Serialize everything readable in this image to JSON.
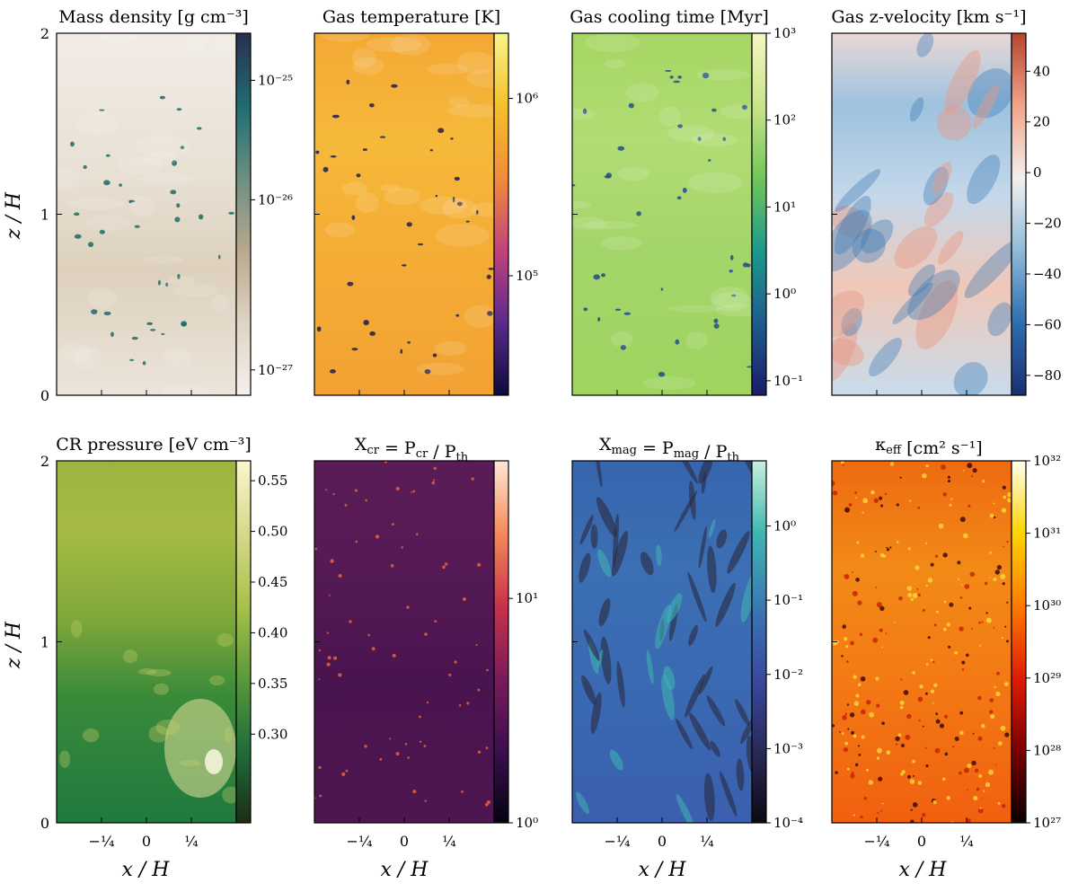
{
  "chart_data": {
    "type": "heatmap",
    "xlabel": "x / H",
    "ylabel": "z / H",
    "xlim": [
      -0.5,
      0.5
    ],
    "ylim": [
      0,
      2
    ],
    "xticks": [
      {
        "value": -0.25,
        "label": "−¼"
      },
      {
        "value": 0,
        "label": "0"
      },
      {
        "value": 0.25,
        "label": "¼"
      }
    ],
    "yticks": [
      {
        "value": 0,
        "label": "0"
      },
      {
        "value": 1,
        "label": "1"
      },
      {
        "value": 2,
        "label": "2"
      }
    ],
    "panels": [
      {
        "id": "density",
        "title": "Mass density [g cm⁻³]",
        "cmap": [
          "#f3f0ed",
          "#e0d4c2",
          "#b8a88e",
          "#6c8f80",
          "#1f6c72",
          "#2a2f52"
        ],
        "field_stops": [
          [
            0,
            "#ebe4da"
          ],
          [
            0.35,
            "#ddd1bd"
          ],
          [
            0.6,
            "#e8e0d3"
          ],
          [
            1,
            "#f1ece6"
          ]
        ],
        "blob_color": "#1c6a6a",
        "blobs": "sparse-dark",
        "scale": "log",
        "cbar_ticks": [
          {
            "label": "10⁻²⁵",
            "frac": 0.87
          },
          {
            "label": "10⁻²⁶",
            "frac": 0.54
          },
          {
            "label": "10⁻²⁷",
            "frac": 0.07
          }
        ]
      },
      {
        "id": "temperature",
        "title": "Gas temperature [K]",
        "cmap": [
          "#0b0c3a",
          "#5a2a8c",
          "#c2427a",
          "#f28c3c",
          "#f5c02a",
          "#f6f58a"
        ],
        "field_stops": [
          [
            0,
            "#f2a233"
          ],
          [
            0.4,
            "#f4ad35"
          ],
          [
            0.7,
            "#f6b93a"
          ],
          [
            1,
            "#f4a834"
          ]
        ],
        "blob_color": "#1e1d4e",
        "blobs": "sparse-dark",
        "scale": "log",
        "cbar_ticks": [
          {
            "label": "10⁶",
            "frac": 0.82
          },
          {
            "label": "10⁵",
            "frac": 0.33
          }
        ]
      },
      {
        "id": "cooling",
        "title": "Gas cooling time [Myr]",
        "cmap": [
          "#1c1b6a",
          "#1e5c8e",
          "#1d9a8c",
          "#71c658",
          "#c8e48a",
          "#f7f7c4"
        ],
        "field_stops": [
          [
            0,
            "#9fd460"
          ],
          [
            0.4,
            "#a4d56a"
          ],
          [
            0.7,
            "#b1dc74"
          ],
          [
            1,
            "#a7d663"
          ]
        ],
        "blob_color": "#1f4f8c",
        "blobs": "sparse-dark",
        "scale": "log",
        "cbar_ticks": [
          {
            "label": "10³",
            "frac": 1.0
          },
          {
            "label": "10²",
            "frac": 0.76
          },
          {
            "label": "10¹",
            "frac": 0.52
          },
          {
            "label": "10⁰",
            "frac": 0.28
          },
          {
            "label": "10⁻¹",
            "frac": 0.04
          }
        ]
      },
      {
        "id": "vz",
        "title": "Gas z-velocity [km s⁻¹]",
        "cmap": [
          "#1b2f6e",
          "#2e6db0",
          "#8fbbd9",
          "#f3f0ef",
          "#f0a48a",
          "#b7452e"
        ],
        "field_stops": [
          [
            0,
            "#c8dcec"
          ],
          [
            0.3,
            "#f0c8b8"
          ],
          [
            0.55,
            "#c4d8ea"
          ],
          [
            0.8,
            "#9ec2df"
          ],
          [
            1,
            "#e8d8d6"
          ]
        ],
        "blob_color": "#3b79b6",
        "blobs": "streaks",
        "scale": "linear",
        "cbar_ticks": [
          {
            "label": "40",
            "frac": 0.895
          },
          {
            "label": "20",
            "frac": 0.755
          },
          {
            "label": "0",
            "frac": 0.615
          },
          {
            "label": "−20",
            "frac": 0.475
          },
          {
            "label": "−40",
            "frac": 0.335
          },
          {
            "label": "−60",
            "frac": 0.195
          },
          {
            "label": "−80",
            "frac": 0.055
          }
        ]
      },
      {
        "id": "crpressure",
        "title": "CR pressure [eV cm⁻³]",
        "cmap": [
          "#1c2e14",
          "#1f6e3a",
          "#5a9a3a",
          "#a8c24a",
          "#d8d88a",
          "#fbf7cc"
        ],
        "field_stops": [
          [
            0,
            "#1f7a3f"
          ],
          [
            0.35,
            "#3a8a3a"
          ],
          [
            0.55,
            "#7aa63a"
          ],
          [
            0.8,
            "#a6bb42"
          ],
          [
            1,
            "#9cb540"
          ]
        ],
        "blob_color": "#e6e19a",
        "blobs": "glow",
        "scale": "linear",
        "cbar_ticks": [
          {
            "label": "0.55",
            "frac": 0.945
          },
          {
            "label": "0.50",
            "frac": 0.805
          },
          {
            "label": "0.45",
            "frac": 0.665
          },
          {
            "label": "0.40",
            "frac": 0.525
          },
          {
            "label": "0.35",
            "frac": 0.385
          },
          {
            "label": "0.30",
            "frac": 0.245
          }
        ]
      },
      {
        "id": "xcr",
        "title": "X_cr = P_cr / P_th",
        "cmap": [
          "#05030f",
          "#3b0f4f",
          "#7a1c5a",
          "#c8324a",
          "#f58a5a",
          "#fde8d8"
        ],
        "field_stops": [
          [
            0,
            "#4e1650"
          ],
          [
            0.4,
            "#4a1450"
          ],
          [
            0.7,
            "#551a55"
          ],
          [
            1,
            "#5a1c57"
          ]
        ],
        "blob_color": "#f0683c",
        "blobs": "speckles",
        "scale": "log",
        "cbar_ticks": [
          {
            "label": "10¹",
            "frac": 0.62
          },
          {
            "label": "10⁰",
            "frac": 0.0
          }
        ]
      },
      {
        "id": "xmag",
        "title": "X_mag = P_mag / P_th",
        "cmap": [
          "#0a0a14",
          "#2a2a58",
          "#3a4aa0",
          "#3b78b4",
          "#3fb6b0",
          "#c8f0de"
        ],
        "field_stops": [
          [
            0,
            "#3a5fae"
          ],
          [
            0.4,
            "#3a6ab2"
          ],
          [
            0.7,
            "#3c6fb4"
          ],
          [
            1,
            "#3665ad"
          ]
        ],
        "blob_color": "#2a2a40",
        "blobs": "filaments",
        "scale": "log",
        "cbar_ticks": [
          {
            "label": "10⁰",
            "frac": 0.82
          },
          {
            "label": "10⁻¹",
            "frac": 0.615
          },
          {
            "label": "10⁻²",
            "frac": 0.41
          },
          {
            "label": "10⁻³",
            "frac": 0.205
          },
          {
            "label": "10⁻⁴",
            "frac": 0.0
          }
        ]
      },
      {
        "id": "kappa",
        "title": "κ_eff [cm² s⁻¹]",
        "cmap": [
          "#0a0000",
          "#7a0000",
          "#e01c00",
          "#ff7a00",
          "#ffd400",
          "#fffff0"
        ],
        "field_stops": [
          [
            0,
            "#f06010"
          ],
          [
            0.4,
            "#f37a14"
          ],
          [
            0.7,
            "#f28a16"
          ],
          [
            1,
            "#ee6a12"
          ]
        ],
        "blob_color": "#ffe24a",
        "blobs": "noise",
        "scale": "log",
        "cbar_ticks": [
          {
            "label": "10³²",
            "frac": 1.0
          },
          {
            "label": "10³¹",
            "frac": 0.8
          },
          {
            "label": "10³⁰",
            "frac": 0.6
          },
          {
            "label": "10²⁹",
            "frac": 0.4
          },
          {
            "label": "10²⁸",
            "frac": 0.2
          },
          {
            "label": "10²⁷",
            "frac": 0.0
          }
        ]
      }
    ]
  }
}
